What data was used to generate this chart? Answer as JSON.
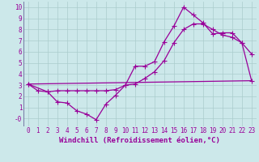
{
  "xlabel": "Windchill (Refroidissement éolien,°C)",
  "bg_color": "#cce8ea",
  "line_color": "#990099",
  "grid_color": "#aacccc",
  "xlim": [
    -0.5,
    23.5
  ],
  "ylim": [
    -0.7,
    10.5
  ],
  "xticks": [
    0,
    1,
    2,
    3,
    4,
    5,
    6,
    7,
    8,
    9,
    10,
    11,
    12,
    13,
    14,
    15,
    16,
    17,
    18,
    19,
    20,
    21,
    22,
    23
  ],
  "yticks": [
    0,
    1,
    2,
    3,
    4,
    5,
    6,
    7,
    8,
    9,
    10
  ],
  "ytick_labels": [
    "-0",
    "1",
    "2",
    "3",
    "4",
    "5",
    "6",
    "7",
    "8",
    "9",
    "10"
  ],
  "line1_x": [
    0,
    1,
    2,
    3,
    4,
    5,
    6,
    7,
    8,
    9,
    10,
    11,
    12,
    13,
    14,
    15,
    16,
    17,
    18,
    19,
    20,
    21,
    22,
    23
  ],
  "line1_y": [
    3.1,
    2.5,
    2.4,
    1.5,
    1.4,
    0.7,
    0.4,
    -0.1,
    1.3,
    2.1,
    3.0,
    4.7,
    4.7,
    5.1,
    6.9,
    8.3,
    10.0,
    9.3,
    8.6,
    7.6,
    7.7,
    7.7,
    6.8,
    5.8
  ],
  "line2_x": [
    0,
    2,
    3,
    4,
    5,
    6,
    7,
    8,
    9,
    10,
    11,
    12,
    13,
    14,
    15,
    16,
    17,
    18,
    19,
    20,
    21,
    22,
    23
  ],
  "line2_y": [
    3.1,
    2.4,
    2.5,
    2.5,
    2.5,
    2.5,
    2.5,
    2.5,
    2.6,
    3.0,
    3.1,
    3.6,
    4.2,
    5.2,
    6.8,
    8.0,
    8.5,
    8.5,
    8.0,
    7.5,
    7.3,
    6.8,
    3.4
  ],
  "line3_x": [
    0,
    23
  ],
  "line3_y": [
    3.1,
    3.4
  ],
  "markersize": 2.5,
  "linewidth": 0.9,
  "font_color": "#990099",
  "tick_fontsize": 5.5,
  "label_fontsize": 6.5
}
